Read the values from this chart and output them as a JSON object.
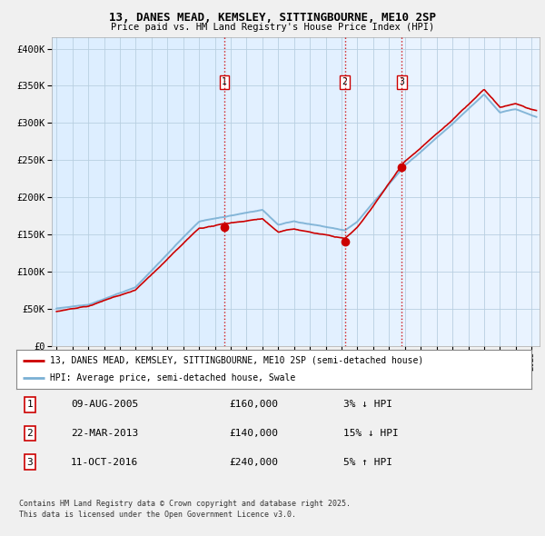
{
  "title": "13, DANES MEAD, KEMSLEY, SITTINGBOURNE, ME10 2SP",
  "subtitle": "Price paid vs. HM Land Registry's House Price Index (HPI)",
  "ylabel_ticks": [
    "£0",
    "£50K",
    "£100K",
    "£150K",
    "£200K",
    "£250K",
    "£300K",
    "£350K",
    "£400K"
  ],
  "ytick_values": [
    0,
    50000,
    100000,
    150000,
    200000,
    250000,
    300000,
    350000,
    400000
  ],
  "ylim": [
    0,
    415000
  ],
  "xlim_start": 1994.7,
  "xlim_end": 2025.5,
  "red_line_color": "#cc0000",
  "blue_line_color": "#7ab0d4",
  "sale_marker_color": "#cc0000",
  "grid_color": "#b8cfe0",
  "bg_color": "#f0f0f0",
  "plot_bg_color": "#ddeeff",
  "shade_color": "#c8dff0",
  "sale_points": [
    {
      "date_year": 2005.6,
      "price": 160000,
      "label": "1"
    },
    {
      "date_year": 2013.2,
      "price": 140000,
      "label": "2"
    },
    {
      "date_year": 2016.8,
      "price": 240000,
      "label": "3"
    }
  ],
  "sale_labels_info": [
    {
      "num": "1",
      "date": "09-AUG-2005",
      "price": "£160,000",
      "pct": "3%",
      "dir": "↓",
      "rel": "HPI"
    },
    {
      "num": "2",
      "date": "22-MAR-2013",
      "price": "£140,000",
      "pct": "15%",
      "dir": "↓",
      "rel": "HPI"
    },
    {
      "num": "3",
      "date": "11-OCT-2016",
      "price": "£240,000",
      "pct": "5%",
      "dir": "↑",
      "rel": "HPI"
    }
  ],
  "legend_line1": "13, DANES MEAD, KEMSLEY, SITTINGBOURNE, ME10 2SP (semi-detached house)",
  "legend_line2": "HPI: Average price, semi-detached house, Swale",
  "footer1": "Contains HM Land Registry data © Crown copyright and database right 2025.",
  "footer2": "This data is licensed under the Open Government Licence v3.0."
}
